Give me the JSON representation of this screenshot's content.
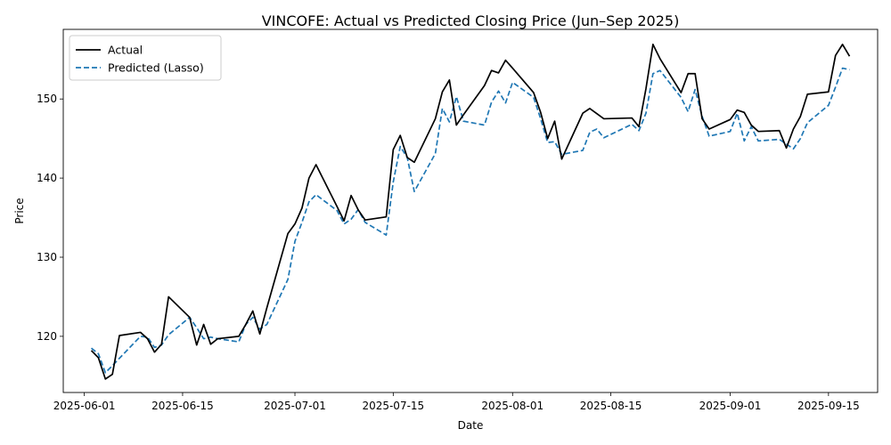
{
  "chart_data": {
    "type": "line",
    "title": "VINCOFE: Actual vs Predicted Closing Price (Jun–Sep 2025)",
    "xlabel": "Date",
    "ylabel": "Price",
    "x_axis_type": "date",
    "xlim": [
      "2025-05-29",
      "2025-09-22"
    ],
    "ylim": [
      112.9,
      158.8
    ],
    "x_ticks": [
      "2025-06-01",
      "2025-06-15",
      "2025-07-01",
      "2025-07-15",
      "2025-08-01",
      "2025-08-15",
      "2025-09-01",
      "2025-09-15"
    ],
    "y_ticks": [
      120,
      130,
      140,
      150
    ],
    "grid": false,
    "legend_position": "top-left",
    "colors": {
      "actual": "#000000",
      "predicted": "#1f77b4"
    },
    "series": [
      {
        "name": "Actual",
        "style": "solid",
        "points": [
          [
            "2025-06-02",
            118.2
          ],
          [
            "2025-06-03",
            117.3
          ],
          [
            "2025-06-04",
            114.6
          ],
          [
            "2025-06-05",
            115.2
          ],
          [
            "2025-06-06",
            120.1
          ],
          [
            "2025-06-09",
            120.5
          ],
          [
            "2025-06-10",
            119.7
          ],
          [
            "2025-06-11",
            118.0
          ],
          [
            "2025-06-12",
            119.0
          ],
          [
            "2025-06-13",
            125.0
          ],
          [
            "2025-06-16",
            122.4
          ],
          [
            "2025-06-17",
            118.9
          ],
          [
            "2025-06-18",
            121.5
          ],
          [
            "2025-06-19",
            119.0
          ],
          [
            "2025-06-20",
            119.7
          ],
          [
            "2025-06-23",
            120.0
          ],
          [
            "2025-06-24",
            121.5
          ],
          [
            "2025-06-25",
            123.2
          ],
          [
            "2025-06-26",
            120.3
          ],
          [
            "2025-06-27",
            123.6
          ],
          [
            "2025-06-30",
            133.0
          ],
          [
            "2025-07-01",
            134.2
          ],
          [
            "2025-07-02",
            136.2
          ],
          [
            "2025-07-03",
            140.0
          ],
          [
            "2025-07-04",
            141.7
          ],
          [
            "2025-07-07",
            136.4
          ],
          [
            "2025-07-08",
            134.6
          ],
          [
            "2025-07-09",
            137.8
          ],
          [
            "2025-07-10",
            136.0
          ],
          [
            "2025-07-11",
            134.7
          ],
          [
            "2025-07-14",
            135.1
          ],
          [
            "2025-07-15",
            143.6
          ],
          [
            "2025-07-16",
            145.4
          ],
          [
            "2025-07-17",
            142.6
          ],
          [
            "2025-07-18",
            142.0
          ],
          [
            "2025-07-21",
            147.5
          ],
          [
            "2025-07-22",
            150.9
          ],
          [
            "2025-07-23",
            152.4
          ],
          [
            "2025-07-24",
            146.7
          ],
          [
            "2025-07-25",
            148.0
          ],
          [
            "2025-07-28",
            151.7
          ],
          [
            "2025-07-29",
            153.6
          ],
          [
            "2025-07-30",
            153.3
          ],
          [
            "2025-07-31",
            154.9
          ],
          [
            "2025-08-01",
            153.9
          ],
          [
            "2025-08-04",
            150.8
          ],
          [
            "2025-08-05",
            148.3
          ],
          [
            "2025-08-06",
            145.0
          ],
          [
            "2025-08-07",
            147.2
          ],
          [
            "2025-08-08",
            142.4
          ],
          [
            "2025-08-11",
            148.2
          ],
          [
            "2025-08-12",
            148.8
          ],
          [
            "2025-08-14",
            147.5
          ],
          [
            "2025-08-18",
            147.6
          ],
          [
            "2025-08-19",
            146.5
          ],
          [
            "2025-08-20",
            151.3
          ],
          [
            "2025-08-21",
            156.9
          ],
          [
            "2025-08-22",
            155.1
          ],
          [
            "2025-08-25",
            150.8
          ],
          [
            "2025-08-26",
            153.2
          ],
          [
            "2025-08-27",
            153.2
          ],
          [
            "2025-08-28",
            147.5
          ],
          [
            "2025-08-29",
            146.2
          ],
          [
            "2025-09-01",
            147.4
          ],
          [
            "2025-09-02",
            148.6
          ],
          [
            "2025-09-03",
            148.3
          ],
          [
            "2025-09-04",
            146.7
          ],
          [
            "2025-09-05",
            145.9
          ],
          [
            "2025-09-08",
            146.0
          ],
          [
            "2025-09-09",
            143.8
          ],
          [
            "2025-09-10",
            146.2
          ],
          [
            "2025-09-11",
            147.8
          ],
          [
            "2025-09-12",
            150.6
          ],
          [
            "2025-09-15",
            150.9
          ],
          [
            "2025-09-16",
            155.5
          ],
          [
            "2025-09-17",
            156.9
          ],
          [
            "2025-09-18",
            155.4
          ]
        ]
      },
      {
        "name": "Predicted (Lasso)",
        "style": "dashed",
        "points": [
          [
            "2025-06-02",
            118.5
          ],
          [
            "2025-06-03",
            117.8
          ],
          [
            "2025-06-04",
            115.4
          ],
          [
            "2025-06-05",
            116.3
          ],
          [
            "2025-06-09",
            120.0
          ],
          [
            "2025-06-10",
            119.9
          ],
          [
            "2025-06-11",
            118.6
          ],
          [
            "2025-06-12",
            118.9
          ],
          [
            "2025-06-13",
            120.2
          ],
          [
            "2025-06-16",
            122.4
          ],
          [
            "2025-06-17",
            121.1
          ],
          [
            "2025-06-18",
            119.7
          ],
          [
            "2025-06-19",
            119.9
          ],
          [
            "2025-06-20",
            119.7
          ],
          [
            "2025-06-23",
            119.3
          ],
          [
            "2025-06-24",
            121.5
          ],
          [
            "2025-06-25",
            122.4
          ],
          [
            "2025-06-26",
            120.9
          ],
          [
            "2025-06-27",
            121.5
          ],
          [
            "2025-06-30",
            127.2
          ],
          [
            "2025-07-01",
            132.0
          ],
          [
            "2025-07-02",
            134.4
          ],
          [
            "2025-07-03",
            137.0
          ],
          [
            "2025-07-04",
            137.9
          ],
          [
            "2025-07-07",
            135.9
          ],
          [
            "2025-07-08",
            134.2
          ],
          [
            "2025-07-09",
            134.8
          ],
          [
            "2025-07-10",
            136.0
          ],
          [
            "2025-07-11",
            134.4
          ],
          [
            "2025-07-14",
            132.8
          ],
          [
            "2025-07-15",
            139.5
          ],
          [
            "2025-07-16",
            144.0
          ],
          [
            "2025-07-17",
            142.6
          ],
          [
            "2025-07-18",
            138.3
          ],
          [
            "2025-07-21",
            143.1
          ],
          [
            "2025-07-22",
            148.8
          ],
          [
            "2025-07-23",
            147.1
          ],
          [
            "2025-07-24",
            150.3
          ],
          [
            "2025-07-25",
            147.2
          ],
          [
            "2025-07-28",
            146.7
          ],
          [
            "2025-07-29",
            149.6
          ],
          [
            "2025-07-30",
            151.0
          ],
          [
            "2025-07-31",
            149.5
          ],
          [
            "2025-08-01",
            152.1
          ],
          [
            "2025-08-04",
            150.2
          ],
          [
            "2025-08-05",
            147.5
          ],
          [
            "2025-08-06",
            144.5
          ],
          [
            "2025-08-07",
            144.6
          ],
          [
            "2025-08-08",
            143.0
          ],
          [
            "2025-08-11",
            143.5
          ],
          [
            "2025-08-12",
            145.8
          ],
          [
            "2025-08-13",
            146.2
          ],
          [
            "2025-08-14",
            145.1
          ],
          [
            "2025-08-18",
            146.8
          ],
          [
            "2025-08-19",
            146.0
          ],
          [
            "2025-08-20",
            148.2
          ],
          [
            "2025-08-21",
            153.2
          ],
          [
            "2025-08-22",
            153.6
          ],
          [
            "2025-08-25",
            150.2
          ],
          [
            "2025-08-26",
            148.4
          ],
          [
            "2025-08-27",
            151.2
          ],
          [
            "2025-08-28",
            147.8
          ],
          [
            "2025-08-29",
            145.3
          ],
          [
            "2025-09-01",
            145.9
          ],
          [
            "2025-09-02",
            148.2
          ],
          [
            "2025-09-03",
            144.7
          ],
          [
            "2025-09-04",
            146.5
          ],
          [
            "2025-09-05",
            144.7
          ],
          [
            "2025-09-08",
            144.9
          ],
          [
            "2025-09-09",
            144.3
          ],
          [
            "2025-09-10",
            143.7
          ],
          [
            "2025-09-11",
            145.0
          ],
          [
            "2025-09-12",
            147.0
          ],
          [
            "2025-09-15",
            149.2
          ],
          [
            "2025-09-16",
            151.5
          ],
          [
            "2025-09-17",
            153.9
          ],
          [
            "2025-09-18",
            153.7
          ]
        ]
      }
    ]
  }
}
